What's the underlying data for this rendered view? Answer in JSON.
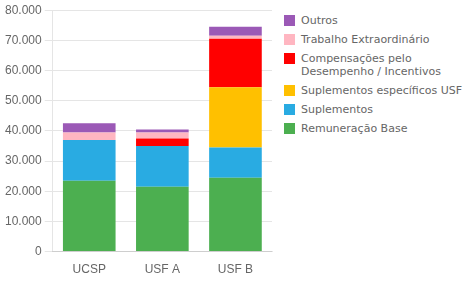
{
  "chart_data": {
    "type": "bar",
    "stacked": true,
    "categories": [
      "UCSP",
      "USF A",
      "USF B"
    ],
    "series": [
      {
        "name": "Remuneração Base",
        "color": "#4CAF50",
        "values": [
          23500,
          21500,
          24500
        ]
      },
      {
        "name": "Suplementos",
        "color": "#29ABE2",
        "values": [
          13500,
          13500,
          10000
        ]
      },
      {
        "name": "Suplementos específicos USF",
        "color": "#FFC000",
        "values": [
          0,
          0,
          20000
        ]
      },
      {
        "name": "Compensações pelo\nDesempenho / Incentivos",
        "color": "#FF0000",
        "values": [
          0,
          2500,
          16000
        ]
      },
      {
        "name": "Trabalho Extraordinário",
        "color": "#FFB6C1",
        "values": [
          2500,
          2000,
          1000
        ]
      },
      {
        "name": "Outros",
        "color": "#9B59B6",
        "values": [
          3000,
          1000,
          3000
        ]
      }
    ],
    "ylim": [
      0,
      80000
    ],
    "yticks": [
      0,
      {
        "value": 10000,
        "label": "10.000"
      },
      {
        "value": 20000,
        "label": "20.000"
      },
      {
        "value": 30000,
        "label": "30.000"
      },
      {
        "value": 40000,
        "label": "40.000"
      },
      {
        "value": 50000,
        "label": "50.000"
      },
      {
        "value": 60000,
        "label": "60.000"
      },
      {
        "value": 70000,
        "label": "70.000"
      },
      {
        "value": 80000,
        "label": "80.000"
      }
    ],
    "grid": "y",
    "legend": "right"
  }
}
